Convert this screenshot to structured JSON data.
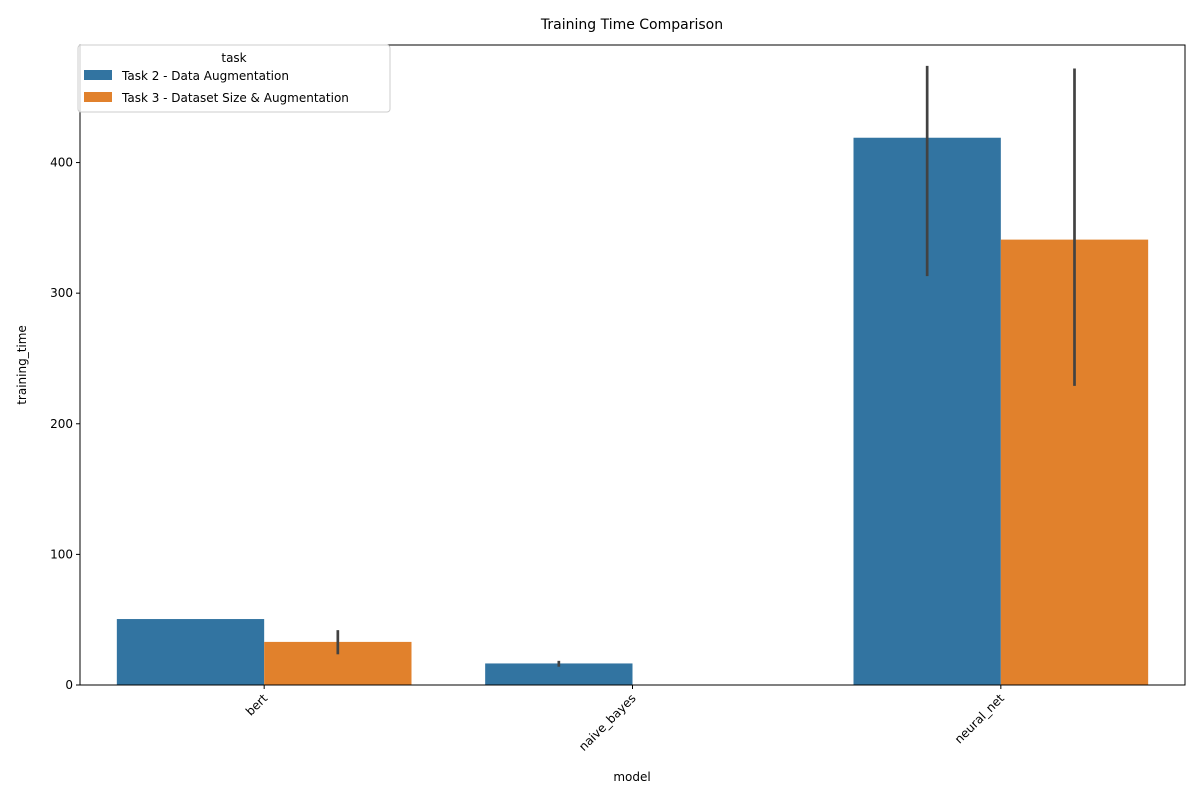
{
  "chart_data": {
    "type": "bar",
    "title": "Training Time Comparison",
    "xlabel": "model",
    "ylabel": "training_time",
    "categories": [
      "bert",
      "naive_bayes",
      "neural_net"
    ],
    "ylim": [
      0,
      490
    ],
    "yticks": [
      0,
      100,
      200,
      300,
      400
    ],
    "legend": {
      "title": "task",
      "placement": "top-left"
    },
    "series": [
      {
        "name": "Task 2 - Data Augmentation",
        "color": "#3274a1",
        "values": [
          50.5,
          16.5,
          419
        ],
        "error_low": [
          null,
          14,
          313
        ],
        "error_high": [
          null,
          18.5,
          474
        ]
      },
      {
        "name": "Task 3 - Dataset Size & Augmentation",
        "color": "#e1812c",
        "values": [
          33,
          null,
          341
        ],
        "error_low": [
          23.5,
          null,
          229
        ],
        "error_high": [
          42,
          null,
          472
        ]
      }
    ]
  }
}
